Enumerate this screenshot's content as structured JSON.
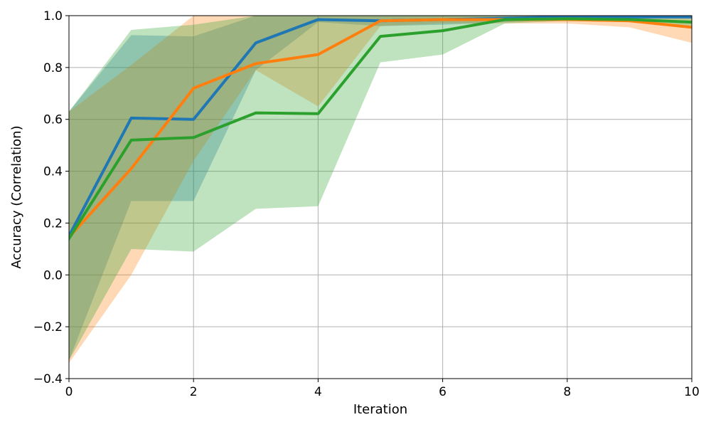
{
  "chart_data": {
    "type": "line",
    "title": "",
    "xlabel": "Iteration",
    "ylabel": "Accuracy (Correlation)",
    "xlim": [
      0,
      10
    ],
    "ylim": [
      -0.4,
      1.0
    ],
    "x_ticks": [
      0,
      2,
      4,
      6,
      8,
      10
    ],
    "x_tick_labels": [
      "0",
      "2",
      "4",
      "6",
      "8",
      "10"
    ],
    "y_ticks": [
      -0.4,
      -0.2,
      0.0,
      0.2,
      0.4,
      0.6,
      0.8,
      1.0
    ],
    "y_tick_labels": [
      "−0.4",
      "−0.2",
      "0.0",
      "0.2",
      "0.4",
      "0.6",
      "0.8",
      "1.0"
    ],
    "grid": true,
    "x": [
      0,
      1,
      2,
      3,
      4,
      5,
      6,
      7,
      8,
      9,
      10
    ],
    "series": [
      {
        "color": "#1f77b4",
        "band_color": "#1f77b4",
        "values": [
          0.15,
          0.605,
          0.6,
          0.895,
          0.985,
          0.98,
          0.985,
          0.99,
          0.995,
          0.995,
          0.995
        ],
        "lower": [
          -0.33,
          0.285,
          0.285,
          0.79,
          0.975,
          0.96,
          0.965,
          0.975,
          0.985,
          0.99,
          0.99
        ],
        "upper": [
          0.63,
          0.925,
          0.92,
          1.0,
          1.0,
          1.0,
          1.0,
          1.0,
          1.0,
          1.0,
          1.0
        ]
      },
      {
        "color": "#ff7f0e",
        "band_color": "#ff7f0e",
        "values": [
          0.145,
          0.41,
          0.72,
          0.815,
          0.85,
          0.98,
          0.985,
          0.985,
          0.985,
          0.98,
          0.955
        ],
        "lower": [
          -0.34,
          0.0,
          0.44,
          0.79,
          0.65,
          0.96,
          0.97,
          0.97,
          0.97,
          0.955,
          0.895
        ],
        "upper": [
          0.63,
          0.81,
          1.0,
          1.0,
          1.0,
          1.0,
          1.0,
          1.0,
          1.0,
          1.0,
          1.0
        ]
      },
      {
        "color": "#2ca02c",
        "band_color": "#2ca02c",
        "values": [
          0.14,
          0.52,
          0.53,
          0.625,
          0.622,
          0.92,
          0.942,
          0.985,
          0.988,
          0.985,
          0.975
        ],
        "lower": [
          -0.33,
          0.1,
          0.09,
          0.255,
          0.265,
          0.82,
          0.85,
          0.97,
          0.98,
          0.975,
          0.96
        ],
        "upper": [
          0.63,
          0.945,
          0.965,
          1.0,
          1.0,
          1.0,
          1.0,
          1.0,
          1.0,
          1.0,
          1.0
        ]
      }
    ]
  }
}
